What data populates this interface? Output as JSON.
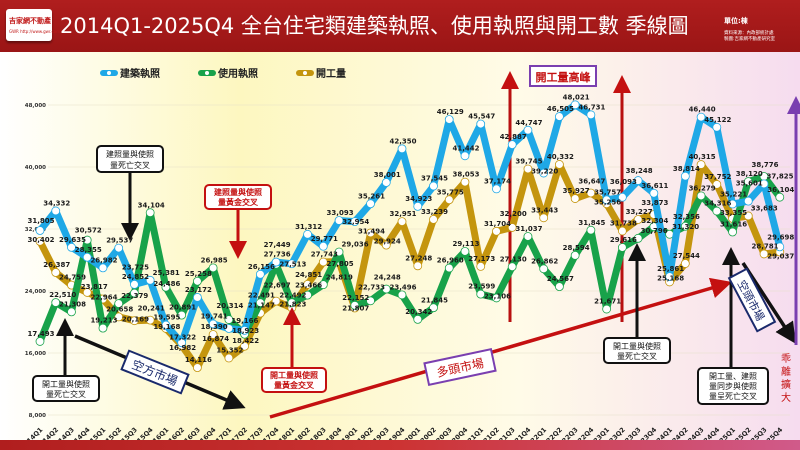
{
  "header": {
    "logo_text": "吉家網不動產",
    "logo_url_text": "GWR http://www.gwr.com.tw",
    "title": "2014Q1-2025Q4  全台住宅類建築執照、使用執照與開工數  季線圖",
    "unit": "單位:棟",
    "source": "資料來源：內政部統計處",
    "credit": "製圖:吉家網不動產研究室"
  },
  "watermark": "www.gwr.com.tw",
  "annotations": {
    "peak": "開工量高峰",
    "a1_l1": "建照量與使照",
    "a1_l2": "量死亡交叉",
    "a2_l1": "建照量與使照",
    "a2_l2": "量黃金交叉",
    "a3_l1": "開工量與使照",
    "a3_l2": "量死亡交叉",
    "a4_l1": "開工量與使照",
    "a4_l2": "量黃金交叉",
    "a5_l1": "開工量與使照",
    "a5_l2": "量死亡交叉",
    "a6_l1": "開工量、建照",
    "a6_l2": "量同步與使照",
    "a6_l3": "量呈死亡交叉",
    "bear1": "空方市場",
    "bull": "多頭市場",
    "bear2": "空頭市場",
    "divergence": [
      "乖",
      "離",
      "擴",
      "大"
    ]
  },
  "chart_data": {
    "type": "line",
    "title": "2014Q1-2025Q4  全台住宅類建築執照、使用執照與開工數  季線圖",
    "ylabel": "單位:棟",
    "ylim": [
      8000,
      48000
    ],
    "yticks": [
      "8,000",
      "16,000",
      "24,000",
      "32,000",
      "40,000",
      "48,000"
    ],
    "ytick_values": [
      8000,
      16000,
      24000,
      32000,
      40000,
      48000
    ],
    "grid": true,
    "legend": "top-left",
    "categories": [
      "2014Q1",
      "2014Q2",
      "2014Q3",
      "2014Q4",
      "2015Q1",
      "2015Q2",
      "2015Q3",
      "2015Q4",
      "2016Q1",
      "2016Q2",
      "2016Q3",
      "2016Q4",
      "2017Q1",
      "2017Q2",
      "2017Q3",
      "2017Q4",
      "2018Q1",
      "2018Q2",
      "2018Q3",
      "2018Q4",
      "2019Q1",
      "2019Q2",
      "2019Q3",
      "2019Q4",
      "2020Q1",
      "2020Q2",
      "2020Q3",
      "2020Q4",
      "2021Q1",
      "2021Q2",
      "2021Q3",
      "2021Q4",
      "2022Q1",
      "2022Q2",
      "2022Q3",
      "2022Q4",
      "2023Q1",
      "2023Q2",
      "2023Q3",
      "2023Q4",
      "2024Q1",
      "2024Q2",
      "2024Q3",
      "2024Q4",
      "2025Q1",
      "2025Q2",
      "2025Q3",
      "2025Q4"
    ],
    "series": [
      {
        "name": "建築執照",
        "color": "#1fa8e6",
        "values": [
          31805,
          34332,
          29635,
          28355,
          26982,
          29537,
          24852,
          25381,
          19595,
          17322,
          23172,
          19741,
          19166,
          18923,
          26156,
          27736,
          27513,
          31312,
          29771,
          33093,
          32954,
          35261,
          38001,
          42350,
          34923,
          37545,
          46129,
          41442,
          45547,
          37174,
          42887,
          44747,
          39220,
          46505,
          48021,
          46731,
          35757,
          36093,
          38248,
          36611,
          25861,
          38814,
          46440,
          45122,
          35221,
          35601,
          37825,
          29698
        ]
      },
      {
        "name": "使用執照",
        "color": "#18a24a",
        "values": [
          17493,
          22510,
          21308,
          30572,
          19213,
          22379,
          23725,
          34104,
          24486,
          20891,
          25258,
          26985,
          20314,
          18422,
          22491,
          27449,
          22492,
          23466,
          24819,
          29036,
          22152,
          22733,
          24248,
          23496,
          20342,
          21845,
          26960,
          29113,
          23599,
          23106,
          27130,
          31037,
          26862,
          24567,
          28594,
          31845,
          21671,
          29616,
          30796,
          32304,
          31320,
          32356,
          36279,
          34316,
          31616,
          38120,
          38776,
          36104
        ]
      },
      {
        "name": "開工量",
        "color": "#c4950e",
        "values": [
          30402,
          26387,
          24759,
          23817,
          22964,
          20658,
          20169,
          20241,
          19168,
          16982,
          14116,
          18390,
          15352,
          16874,
          21147,
          22697,
          21823,
          24851,
          27743,
          27805,
          21807,
          31494,
          29924,
          32951,
          27248,
          33239,
          35775,
          38053,
          27173,
          31704,
          32200,
          39745,
          33443,
          40332,
          35927,
          36647,
          35256,
          31738,
          33227,
          33873,
          25168,
          27544,
          40315,
          37752,
          33355,
          33683,
          28781,
          29037
        ]
      }
    ]
  }
}
